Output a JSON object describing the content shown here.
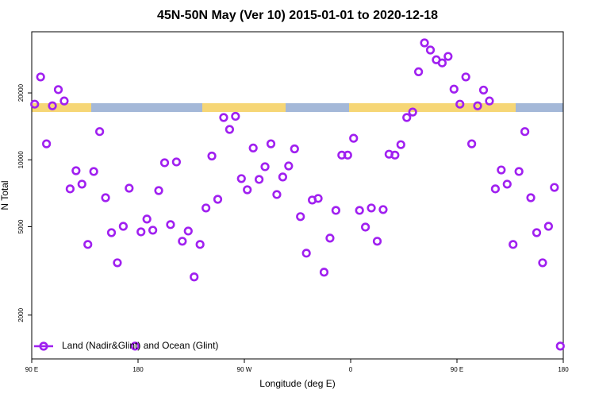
{
  "chart_data": {
    "type": "scatter",
    "title": "45N-50N May (Ver 10)   2015-01-01 to 2020-12-18",
    "xlabel": "Longitude (deg E)",
    "ylabel": "N Total",
    "x": [
      92.5,
      97.5,
      102.5,
      107.5,
      112.5,
      117.5,
      122.5,
      127.5,
      132.5,
      137.5,
      142.5,
      147.5,
      152.5,
      157.5,
      162.5,
      167.5,
      172.5,
      177.5,
      182.5,
      187.5,
      192.5,
      197.5,
      202.5,
      207.5,
      212.5,
      217.5,
      222.5,
      227.5,
      232.5,
      237.5,
      242.5,
      247.5,
      252.5,
      257.5,
      262.5,
      267.5,
      272.5,
      277.5,
      282.5,
      287.5,
      292.5,
      297.5,
      302.5,
      307.5,
      312.5,
      317.5,
      322.5,
      327.5,
      332.5,
      337.5,
      342.5,
      347.5,
      352.5,
      357.5,
      362.5,
      367.5,
      372.5,
      377.5,
      382.5,
      387.5,
      392.5,
      397.5,
      402.5,
      407.5,
      412.5,
      417.5,
      422.5,
      427.5,
      432.5,
      437.5,
      442.5,
      447.5,
      452.5,
      457.5,
      462.5,
      467.5,
      472.5,
      477.5,
      482.5,
      487.5,
      492.5,
      497.5,
      502.5,
      507.5,
      512.5,
      517.5,
      522.5,
      527.5,
      532.5,
      537.5
    ],
    "series": [
      {
        "name": "Land (Nadir&Glint) and Ocean (Glint)",
        "color": "#a020f0",
        "values": [
          17800,
          23600,
          11800,
          17500,
          20700,
          18400,
          7400,
          8930,
          7770,
          4160,
          8860,
          13400,
          6750,
          4700,
          3440,
          5020,
          7450,
          1450,
          4740,
          5410,
          4820,
          7270,
          9700,
          5110,
          9780,
          4300,
          4780,
          2970,
          4160,
          6070,
          10400,
          6640,
          15500,
          13700,
          15700,
          8230,
          7330,
          11300,
          8160,
          9310,
          11800,
          6980,
          8370,
          9380,
          11200,
          5550,
          3800,
          6590,
          6700,
          3120,
          4440,
          5920,
          10500,
          10500,
          12500,
          5920,
          4980,
          6070,
          4300,
          5970,
          10600,
          10500,
          11700,
          15500,
          16400,
          24900,
          33600,
          31200,
          28200,
          27300,
          29200,
          20800,
          17800,
          23600,
          11800,
          17500,
          20600,
          18400,
          7400,
          9000,
          7770,
          4160,
          8860,
          13400,
          6750,
          4700,
          3440,
          5020,
          7510,
          1450
        ]
      }
    ],
    "xlim": [
      90,
      540
    ],
    "xticks": [
      {
        "value": 90,
        "label": "90 E"
      },
      {
        "value": 180,
        "label": "180"
      },
      {
        "value": 270,
        "label": "90 W"
      },
      {
        "value": 360,
        "label": "0"
      },
      {
        "value": 450,
        "label": "90 E"
      },
      {
        "value": 540,
        "label": "180"
      }
    ],
    "ylim": [
      1270,
      37700
    ],
    "yscale": "log",
    "yticks": [
      2000,
      5000,
      10000,
      20000
    ],
    "legend": "bottom-left"
  }
}
